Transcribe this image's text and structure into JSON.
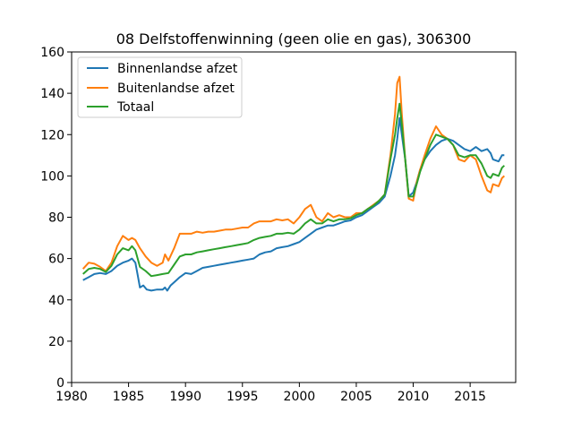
{
  "chart_data": {
    "type": "line",
    "title": "08 Delfstoffenwinning (geen olie en gas), 306300",
    "xlabel": "",
    "ylabel": "",
    "xlim": [
      1980,
      2019
    ],
    "ylim": [
      0,
      160
    ],
    "xticks": [
      1980,
      1985,
      1990,
      1995,
      2000,
      2005,
      2010,
      2015
    ],
    "yticks": [
      0,
      20,
      40,
      60,
      80,
      100,
      120,
      140,
      160
    ],
    "grid": false,
    "legend_position": "upper left",
    "series": [
      {
        "name": "Binnenlandse afzet",
        "color": "#1f77b4",
        "points": [
          [
            1981.0,
            49.5
          ],
          [
            1981.5,
            51
          ],
          [
            1982.0,
            52.5
          ],
          [
            1982.5,
            53
          ],
          [
            1983.0,
            52.5
          ],
          [
            1983.5,
            54
          ],
          [
            1984.0,
            56.5
          ],
          [
            1984.5,
            58
          ],
          [
            1985.0,
            59
          ],
          [
            1985.3,
            60
          ],
          [
            1985.6,
            58
          ],
          [
            1985.8,
            52
          ],
          [
            1986.0,
            46
          ],
          [
            1986.3,
            47
          ],
          [
            1986.6,
            45
          ],
          [
            1987.0,
            44.5
          ],
          [
            1987.5,
            45
          ],
          [
            1988.0,
            45
          ],
          [
            1988.2,
            46
          ],
          [
            1988.4,
            44.5
          ],
          [
            1988.7,
            47
          ],
          [
            1989.0,
            48.5
          ],
          [
            1989.5,
            51
          ],
          [
            1990.0,
            53
          ],
          [
            1990.5,
            52.5
          ],
          [
            1991.0,
            54
          ],
          [
            1991.5,
            55.5
          ],
          [
            1992.0,
            56
          ],
          [
            1992.5,
            56.5
          ],
          [
            1993.0,
            57
          ],
          [
            1993.5,
            57.5
          ],
          [
            1994.0,
            58
          ],
          [
            1994.5,
            58.5
          ],
          [
            1995.0,
            59
          ],
          [
            1995.5,
            59.5
          ],
          [
            1996.0,
            60
          ],
          [
            1996.5,
            62
          ],
          [
            1997.0,
            63
          ],
          [
            1997.5,
            63.5
          ],
          [
            1998.0,
            65
          ],
          [
            1998.5,
            65.5
          ],
          [
            1999.0,
            66
          ],
          [
            1999.5,
            67
          ],
          [
            2000.0,
            68
          ],
          [
            2000.5,
            70
          ],
          [
            2001.0,
            72
          ],
          [
            2001.5,
            74
          ],
          [
            2002.0,
            75
          ],
          [
            2002.5,
            76
          ],
          [
            2003.0,
            76
          ],
          [
            2003.5,
            77
          ],
          [
            2004.0,
            78
          ],
          [
            2004.5,
            78.5
          ],
          [
            2005.0,
            80
          ],
          [
            2005.5,
            81
          ],
          [
            2006.0,
            83
          ],
          [
            2006.5,
            85
          ],
          [
            2007.0,
            87
          ],
          [
            2007.5,
            90
          ],
          [
            2008.0,
            100
          ],
          [
            2008.4,
            110
          ],
          [
            2008.6,
            118
          ],
          [
            2008.8,
            128
          ],
          [
            2009.0,
            120
          ],
          [
            2009.3,
            108
          ],
          [
            2009.6,
            90
          ],
          [
            2010.0,
            92
          ],
          [
            2010.3,
            97
          ],
          [
            2010.6,
            103
          ],
          [
            2011.0,
            108
          ],
          [
            2011.5,
            112
          ],
          [
            2012.0,
            115
          ],
          [
            2012.5,
            117
          ],
          [
            2013.0,
            118
          ],
          [
            2013.5,
            117
          ],
          [
            2014.0,
            115
          ],
          [
            2014.5,
            113
          ],
          [
            2015.0,
            112
          ],
          [
            2015.5,
            114
          ],
          [
            2016.0,
            112
          ],
          [
            2016.5,
            113
          ],
          [
            2016.8,
            111
          ],
          [
            2017.0,
            108
          ],
          [
            2017.5,
            107
          ],
          [
            2017.8,
            110
          ],
          [
            2018.0,
            110
          ]
        ]
      },
      {
        "name": "Buitenlandse afzet",
        "color": "#ff7f0e",
        "points": [
          [
            1981.0,
            55
          ],
          [
            1981.5,
            58
          ],
          [
            1982.0,
            57.5
          ],
          [
            1982.5,
            56
          ],
          [
            1983.0,
            54
          ],
          [
            1983.5,
            58
          ],
          [
            1984.0,
            66
          ],
          [
            1984.5,
            71
          ],
          [
            1985.0,
            69
          ],
          [
            1985.3,
            70
          ],
          [
            1985.6,
            69
          ],
          [
            1986.0,
            65
          ],
          [
            1986.5,
            61
          ],
          [
            1987.0,
            58
          ],
          [
            1987.5,
            56.5
          ],
          [
            1988.0,
            58
          ],
          [
            1988.2,
            62
          ],
          [
            1988.5,
            59
          ],
          [
            1989.0,
            65
          ],
          [
            1989.5,
            72
          ],
          [
            1990.0,
            72
          ],
          [
            1990.5,
            72
          ],
          [
            1991.0,
            73
          ],
          [
            1991.5,
            72.5
          ],
          [
            1992.0,
            73
          ],
          [
            1992.5,
            73
          ],
          [
            1993.0,
            73.5
          ],
          [
            1993.5,
            74
          ],
          [
            1994.0,
            74
          ],
          [
            1994.5,
            74.5
          ],
          [
            1995.0,
            75
          ],
          [
            1995.5,
            75
          ],
          [
            1996.0,
            77
          ],
          [
            1996.5,
            78
          ],
          [
            1997.0,
            78
          ],
          [
            1997.5,
            78
          ],
          [
            1998.0,
            79
          ],
          [
            1998.5,
            78.5
          ],
          [
            1999.0,
            79
          ],
          [
            1999.5,
            77
          ],
          [
            2000.0,
            80
          ],
          [
            2000.5,
            84
          ],
          [
            2001.0,
            86
          ],
          [
            2001.5,
            80
          ],
          [
            2002.0,
            78
          ],
          [
            2002.5,
            82
          ],
          [
            2003.0,
            80
          ],
          [
            2003.5,
            81
          ],
          [
            2004.0,
            80
          ],
          [
            2004.5,
            80
          ],
          [
            2005.0,
            82
          ],
          [
            2005.5,
            82
          ],
          [
            2006.0,
            84
          ],
          [
            2006.5,
            86
          ],
          [
            2007.0,
            88
          ],
          [
            2007.5,
            91
          ],
          [
            2008.0,
            110
          ],
          [
            2008.4,
            130
          ],
          [
            2008.6,
            145
          ],
          [
            2008.8,
            148
          ],
          [
            2009.0,
            130
          ],
          [
            2009.3,
            108
          ],
          [
            2009.6,
            89
          ],
          [
            2010.0,
            88
          ],
          [
            2010.3,
            97
          ],
          [
            2010.6,
            103
          ],
          [
            2011.0,
            110
          ],
          [
            2011.5,
            118
          ],
          [
            2012.0,
            124
          ],
          [
            2012.5,
            120
          ],
          [
            2013.0,
            118
          ],
          [
            2013.5,
            115
          ],
          [
            2014.0,
            108
          ],
          [
            2014.5,
            107
          ],
          [
            2015.0,
            110
          ],
          [
            2015.5,
            108
          ],
          [
            2016.0,
            100
          ],
          [
            2016.5,
            93
          ],
          [
            2016.8,
            92
          ],
          [
            2017.0,
            96
          ],
          [
            2017.5,
            95
          ],
          [
            2017.8,
            99
          ],
          [
            2018.0,
            100
          ]
        ]
      },
      {
        "name": "Totaal",
        "color": "#2ca02c",
        "points": [
          [
            1981.0,
            52.5
          ],
          [
            1981.5,
            55
          ],
          [
            1982.0,
            55.5
          ],
          [
            1982.5,
            55
          ],
          [
            1983.0,
            53.5
          ],
          [
            1983.5,
            56.5
          ],
          [
            1984.0,
            62
          ],
          [
            1984.5,
            65
          ],
          [
            1985.0,
            64
          ],
          [
            1985.3,
            66
          ],
          [
            1985.6,
            64
          ],
          [
            1986.0,
            56
          ],
          [
            1986.5,
            54
          ],
          [
            1987.0,
            51.5
          ],
          [
            1987.5,
            52
          ],
          [
            1988.0,
            52.5
          ],
          [
            1988.5,
            53
          ],
          [
            1989.0,
            57
          ],
          [
            1989.5,
            61
          ],
          [
            1990.0,
            62
          ],
          [
            1990.5,
            62
          ],
          [
            1991.0,
            63
          ],
          [
            1991.5,
            63.5
          ],
          [
            1992.0,
            64
          ],
          [
            1992.5,
            64.5
          ],
          [
            1993.0,
            65
          ],
          [
            1993.5,
            65.5
          ],
          [
            1994.0,
            66
          ],
          [
            1994.5,
            66.5
          ],
          [
            1995.0,
            67
          ],
          [
            1995.5,
            67.5
          ],
          [
            1996.0,
            69
          ],
          [
            1996.5,
            70
          ],
          [
            1997.0,
            70.5
          ],
          [
            1997.5,
            71
          ],
          [
            1998.0,
            72
          ],
          [
            1998.5,
            72
          ],
          [
            1999.0,
            72.5
          ],
          [
            1999.5,
            72
          ],
          [
            2000.0,
            74
          ],
          [
            2000.5,
            77
          ],
          [
            2001.0,
            79
          ],
          [
            2001.5,
            77
          ],
          [
            2002.0,
            77
          ],
          [
            2002.5,
            79
          ],
          [
            2003.0,
            78
          ],
          [
            2003.5,
            79
          ],
          [
            2004.0,
            79
          ],
          [
            2004.5,
            79.5
          ],
          [
            2005.0,
            81
          ],
          [
            2005.5,
            82
          ],
          [
            2006.0,
            84
          ],
          [
            2006.5,
            85.5
          ],
          [
            2007.0,
            88
          ],
          [
            2007.5,
            91
          ],
          [
            2008.0,
            108
          ],
          [
            2008.4,
            120
          ],
          [
            2008.6,
            128
          ],
          [
            2008.8,
            135
          ],
          [
            2009.0,
            125
          ],
          [
            2009.3,
            108
          ],
          [
            2009.6,
            90
          ],
          [
            2010.0,
            90
          ],
          [
            2010.3,
            96
          ],
          [
            2010.6,
            102
          ],
          [
            2011.0,
            108
          ],
          [
            2011.5,
            115
          ],
          [
            2012.0,
            120
          ],
          [
            2012.5,
            119
          ],
          [
            2013.0,
            118
          ],
          [
            2013.5,
            115
          ],
          [
            2014.0,
            110
          ],
          [
            2014.5,
            109
          ],
          [
            2015.0,
            110
          ],
          [
            2015.5,
            110
          ],
          [
            2016.0,
            106
          ],
          [
            2016.5,
            100
          ],
          [
            2016.8,
            99
          ],
          [
            2017.0,
            101
          ],
          [
            2017.5,
            100
          ],
          [
            2017.8,
            104
          ],
          [
            2018.0,
            105
          ]
        ]
      }
    ]
  }
}
